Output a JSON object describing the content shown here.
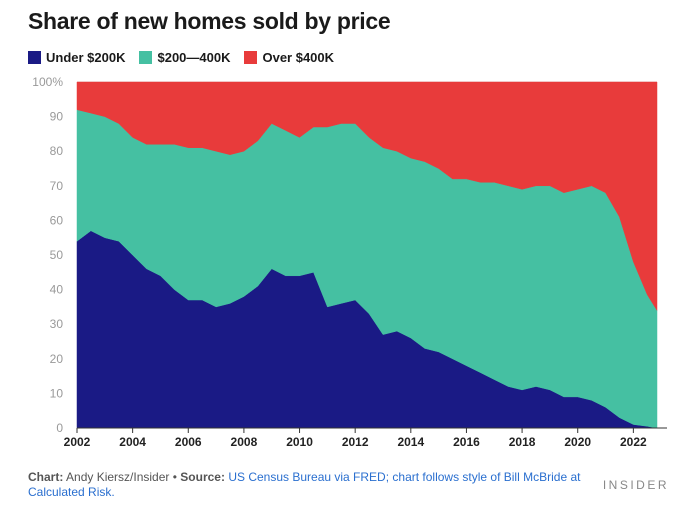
{
  "title": "Share of new homes sold by price",
  "colors": {
    "under_200k": "#1a1a85",
    "mid": "#45c0a2",
    "over_400k": "#e83b3b",
    "axis_text": "#999999",
    "grid": "#dddddd"
  },
  "legend": [
    {
      "label": "Under $200K",
      "color": "#1a1a85"
    },
    {
      "label": "$200—400K",
      "color": "#45c0a2"
    },
    {
      "label": "Over $400K",
      "color": "#e83b3b"
    }
  ],
  "footer": {
    "chart_label": "Chart:",
    "chart_author": "Andy Kiersz/Insider",
    "bullet": "•",
    "source_label": "Source:",
    "source_text": "US Census Bureau via FRED; chart follows style of Bill McBride at Calculated Risk.",
    "brand": "INSIDER"
  },
  "chart_data": {
    "type": "area",
    "stacked": true,
    "title": "Share of new homes sold by price",
    "xlabel": "",
    "ylabel": "",
    "xlim": [
      2002,
      2022.85
    ],
    "ylim": [
      0,
      100
    ],
    "x_ticks": [
      2002,
      2004,
      2006,
      2008,
      2010,
      2012,
      2014,
      2016,
      2018,
      2020,
      2022
    ],
    "y_ticks": [
      0,
      10,
      20,
      30,
      40,
      50,
      60,
      70,
      80,
      90,
      100
    ],
    "y_tick_labels": [
      "0",
      "10",
      "20",
      "30",
      "40",
      "50",
      "60",
      "70",
      "80",
      "90",
      "100%"
    ],
    "legend_position": "top-left",
    "x": [
      2002,
      2002.5,
      2003,
      2003.5,
      2004,
      2004.5,
      2005,
      2005.5,
      2006,
      2006.5,
      2007,
      2007.5,
      2008,
      2008.5,
      2009,
      2009.5,
      2010,
      2010.5,
      2011,
      2011.5,
      2012,
      2012.5,
      2013,
      2013.5,
      2014,
      2014.5,
      2015,
      2015.5,
      2016,
      2016.5,
      2017,
      2017.5,
      2018,
      2018.5,
      2019,
      2019.5,
      2020,
      2020.5,
      2021,
      2021.5,
      2022,
      2022.5,
      2022.85
    ],
    "series": [
      {
        "name": "Under $200K",
        "values": [
          54,
          57,
          55,
          54,
          50,
          46,
          44,
          40,
          37,
          37,
          35,
          36,
          38,
          41,
          46,
          44,
          44,
          45,
          35,
          36,
          37,
          33,
          27,
          28,
          26,
          23,
          22,
          20,
          18,
          16,
          14,
          12,
          11,
          12,
          11,
          9,
          9,
          8,
          6,
          3,
          1,
          0.5,
          0
        ]
      },
      {
        "name": "$200—400K",
        "values": [
          38,
          34,
          35,
          34,
          34,
          36,
          38,
          42,
          44,
          44,
          45,
          43,
          42,
          42,
          42,
          42,
          40,
          42,
          52,
          52,
          51,
          51,
          54,
          52,
          52,
          54,
          53,
          52,
          54,
          55,
          57,
          58,
          58,
          58,
          59,
          59,
          60,
          62,
          62,
          58,
          47,
          38,
          34
        ]
      },
      {
        "name": "Over $400K",
        "values": [
          8,
          9,
          10,
          12,
          16,
          18,
          18,
          18,
          19,
          19,
          20,
          21,
          20,
          17,
          12,
          14,
          16,
          13,
          13,
          12,
          12,
          16,
          19,
          20,
          22,
          23,
          25,
          28,
          28,
          29,
          29,
          30,
          31,
          30,
          30,
          32,
          31,
          30,
          32,
          39,
          52,
          61.5,
          66
        ]
      }
    ]
  }
}
